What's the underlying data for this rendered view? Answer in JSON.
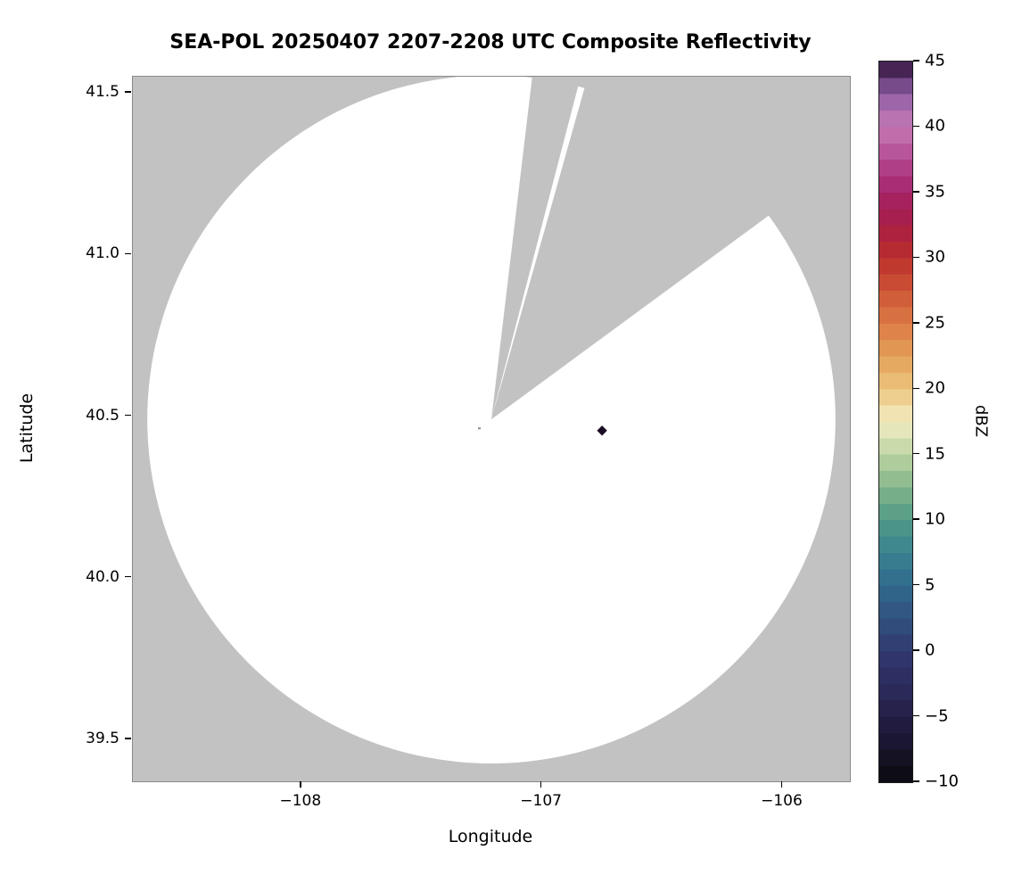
{
  "chart_data": {
    "type": "heatmap",
    "subtype": "radar-ppi-composite-reflectivity",
    "title": "SEA-POL 20250407 2207-2208 UTC Composite Reflectivity",
    "xlabel": "Longitude",
    "ylabel": "Latitude",
    "xlim": [
      -108.7,
      -105.72
    ],
    "ylim": [
      39.37,
      41.55
    ],
    "x_ticks": [
      -108,
      -107,
      -106
    ],
    "y_ticks": [
      39.5,
      40.0,
      40.5,
      41.0,
      41.5
    ],
    "y_tick_decimals": 1,
    "grid": false,
    "background_color": "#c2c2c2",
    "coverage": {
      "description": "radar coverage area with no detectable echo (white disk), clipped at plot top",
      "center_lon": -107.21,
      "center_lat": 40.49,
      "radius_deg_lon": 1.43,
      "fill_color": "#ffffff",
      "blocked_sectors_az_deg": [
        [
          6.8,
          14.6
        ],
        [
          15.7,
          53.7
        ]
      ]
    },
    "echoes": [
      {
        "lon": -106.75,
        "lat": 40.455,
        "dbz": 45,
        "color": "#1b0b25",
        "shape": "diamond",
        "size": 8
      },
      {
        "lon": -107.26,
        "lat": 40.462,
        "dbz": null,
        "color": "#8a8a8a",
        "shape": "dot",
        "size": 3
      }
    ],
    "colorbar": {
      "label": "dBZ",
      "min": -10,
      "max": 45,
      "ticks": [
        45,
        40,
        35,
        30,
        25,
        20,
        15,
        10,
        5,
        0,
        -5,
        -10
      ],
      "band_step": 1.25,
      "stops": [
        [
          -10,
          "#0b0b0d"
        ],
        [
          -7.5,
          "#18142b"
        ],
        [
          -5,
          "#241f45"
        ],
        [
          -2.5,
          "#2c2c5e"
        ],
        [
          0,
          "#31396f"
        ],
        [
          2.5,
          "#31517f"
        ],
        [
          5,
          "#2f6a8c"
        ],
        [
          7.5,
          "#398290"
        ],
        [
          10,
          "#4f9a86"
        ],
        [
          12.5,
          "#83b58b"
        ],
        [
          15,
          "#bdd3a2"
        ],
        [
          17.5,
          "#f2eec3"
        ],
        [
          20,
          "#ecc57e"
        ],
        [
          22.5,
          "#e39f58"
        ],
        [
          25,
          "#dc7b45"
        ],
        [
          27.5,
          "#cd5436"
        ],
        [
          30,
          "#bb302c"
        ],
        [
          32.5,
          "#a81d45"
        ],
        [
          35,
          "#a42368"
        ],
        [
          37.5,
          "#b34a93"
        ],
        [
          40,
          "#c679b4"
        ],
        [
          42.5,
          "#8f5fa5"
        ],
        [
          45,
          "#2e1038"
        ]
      ]
    }
  }
}
